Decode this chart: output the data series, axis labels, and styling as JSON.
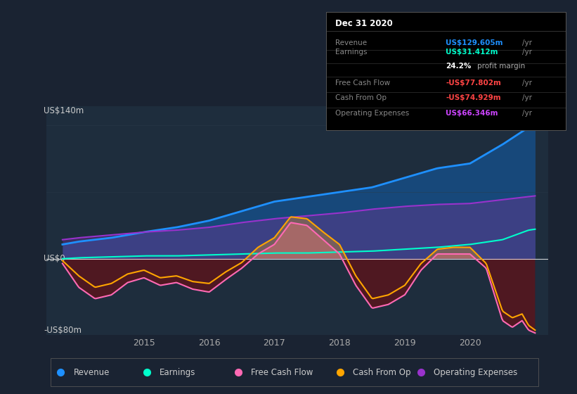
{
  "background_color": "#1a2332",
  "plot_bg_color": "#1e2d3d",
  "y_label_top": "US$140m",
  "y_label_zero": "US$0",
  "y_label_bottom": "-US$80m",
  "ylim": [
    -80,
    160
  ],
  "xlim_start": 2013.5,
  "xlim_end": 2021.2,
  "x_ticks": [
    2015,
    2016,
    2017,
    2018,
    2019,
    2020
  ],
  "info_box_title": "Dec 31 2020",
  "info_rows": [
    {
      "label": "Revenue",
      "value": "US$129.605m",
      "value_color": "#1e90ff",
      "suffix": " /yr",
      "extra_label": "",
      "extra_value": "",
      "extra_color": ""
    },
    {
      "label": "Earnings",
      "value": "US$31.412m",
      "value_color": "#00ffcc",
      "suffix": " /yr",
      "extra_label": "",
      "extra_value": "24.2%",
      "extra_color": "#ffffff"
    },
    {
      "label": "Free Cash Flow",
      "value": "-US$77.802m",
      "value_color": "#ff4444",
      "suffix": " /yr",
      "extra_label": "",
      "extra_value": "",
      "extra_color": ""
    },
    {
      "label": "Cash From Op",
      "value": "-US$74.929m",
      "value_color": "#ff4444",
      "suffix": " /yr",
      "extra_label": "",
      "extra_value": "",
      "extra_color": ""
    },
    {
      "label": "Operating Expenses",
      "value": "US$66.346m",
      "value_color": "#cc44ff",
      "suffix": " /yr",
      "extra_label": "",
      "extra_value": "",
      "extra_color": ""
    }
  ],
  "legend_items": [
    {
      "label": "Revenue",
      "color": "#1e90ff"
    },
    {
      "label": "Earnings",
      "color": "#00ffcc"
    },
    {
      "label": "Free Cash Flow",
      "color": "#ff69b4"
    },
    {
      "label": "Cash From Op",
      "color": "#ffa500"
    },
    {
      "label": "Operating Expenses",
      "color": "#9932cc"
    }
  ],
  "revenue_color": "#1e90ff",
  "earnings_color": "#00ffcc",
  "fcf_color": "#ff69b4",
  "cashop_color": "#ffa500",
  "opex_color": "#9932cc",
  "grid_color": "#2a3a4a"
}
